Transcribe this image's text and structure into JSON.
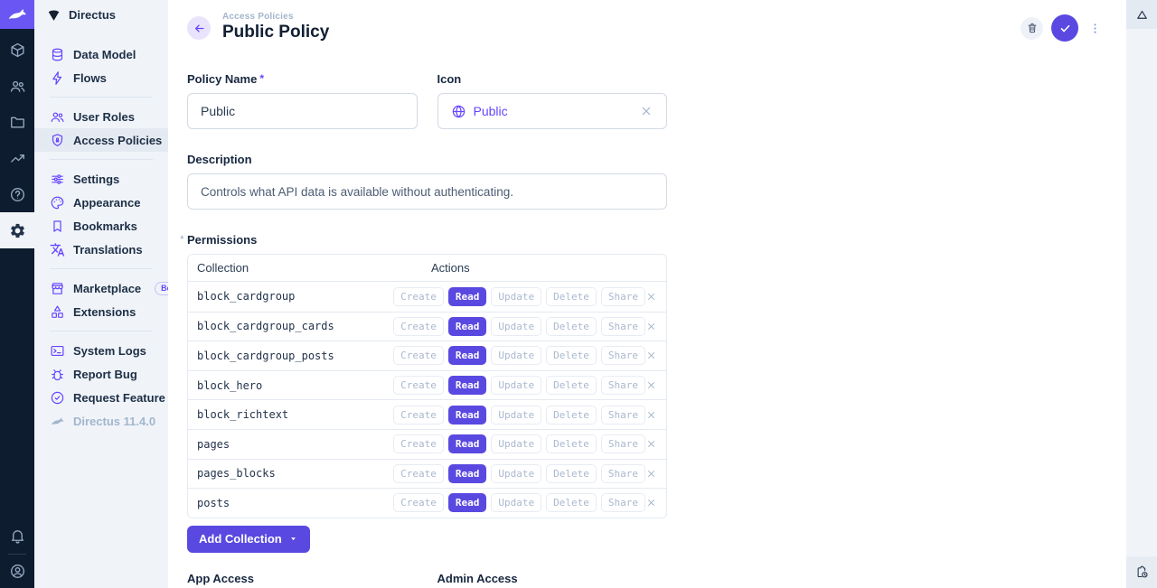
{
  "colors": {
    "accent": "#5a49e0",
    "brand_purple": "#6644ff",
    "module_bar_bg": "#0e1c2f",
    "sidebar_bg": "#f0f4f9",
    "active_item_bg": "#e4eaf1",
    "muted_text": "#a2b5cd",
    "text": "#172940"
  },
  "module_bar": {
    "logo_icon": "rabbit-icon",
    "items": [
      {
        "icon": "box-icon",
        "name": "content-module",
        "active": false
      },
      {
        "icon": "people-icon",
        "name": "users-module",
        "active": false
      },
      {
        "icon": "folder-icon",
        "name": "files-module",
        "active": false
      },
      {
        "icon": "insights-icon",
        "name": "insights-module",
        "active": false
      },
      {
        "icon": "help-icon",
        "name": "docs-module",
        "active": false
      },
      {
        "icon": "settings-gear-icon",
        "name": "settings-module",
        "active": true
      }
    ],
    "bottom": [
      {
        "icon": "bell-icon",
        "name": "notifications-button"
      },
      {
        "icon": "avatar-icon",
        "name": "user-menu-button"
      }
    ]
  },
  "sidebar": {
    "project_icon": "fan-icon",
    "title": "Directus",
    "sections": [
      [
        {
          "icon": "database-icon",
          "label": "Data Model"
        },
        {
          "icon": "bolt-icon",
          "label": "Flows"
        }
      ],
      [
        {
          "icon": "people-icon",
          "label": "User Roles"
        },
        {
          "icon": "shield-lock-icon",
          "label": "Access Policies",
          "active": true
        }
      ],
      [
        {
          "icon": "tune-icon",
          "label": "Settings"
        },
        {
          "icon": "palette-icon",
          "label": "Appearance"
        },
        {
          "icon": "bookmark-icon",
          "label": "Bookmarks"
        },
        {
          "icon": "translate-icon",
          "label": "Translations"
        }
      ],
      [
        {
          "icon": "storefront-icon",
          "label": "Marketplace",
          "badge": "Beta"
        },
        {
          "icon": "category-icon",
          "label": "Extensions"
        }
      ],
      [
        {
          "icon": "terminal-icon",
          "label": "System Logs"
        },
        {
          "icon": "bug-icon",
          "label": "Report Bug"
        },
        {
          "icon": "new-releases-icon",
          "label": "Request Feature"
        },
        {
          "icon": "rabbit-icon",
          "label": "Directus 11.4.0",
          "muted": true
        }
      ]
    ]
  },
  "header": {
    "back_icon": "arrow-left-icon",
    "breadcrumb": "Access Policies",
    "title": "Public Policy",
    "delete_icon": "trash-icon",
    "save_icon": "check-icon",
    "more_icon": "kebab-icon"
  },
  "form": {
    "policy_name": {
      "label": "Policy Name",
      "required_marker": "*",
      "value": "Public"
    },
    "icon_field": {
      "label": "Icon",
      "glyph": "globe-icon",
      "value": "Public",
      "clear_icon": "close-icon"
    },
    "description": {
      "label": "Description",
      "value": "Controls what API data is available without authenticating."
    },
    "permissions": {
      "label": "Permissions",
      "edited_marker": "*",
      "columns": [
        "Collection",
        "Actions"
      ],
      "actions": [
        "Create",
        "Read",
        "Update",
        "Delete",
        "Share"
      ],
      "active_action": "Read",
      "remove_icon": "close-icon",
      "rows": [
        "block_cardgroup",
        "block_cardgroup_cards",
        "block_cardgroup_posts",
        "block_hero",
        "block_richtext",
        "pages",
        "pages_blocks",
        "posts"
      ]
    },
    "add_collection": {
      "label": "Add Collection",
      "caret_icon": "dropdown-caret-icon"
    },
    "app_access_label": "App Access",
    "admin_access_label": "Admin Access"
  },
  "right_sidebar": {
    "top_icon": "change-history-icon",
    "bottom_icon": "pending-actions-icon"
  }
}
